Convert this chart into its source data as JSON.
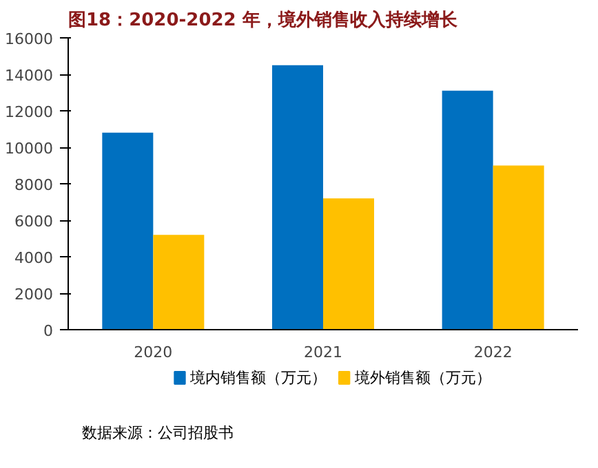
{
  "chart_data": {
    "type": "bar",
    "title": "图18：2020-2022 年，境外销售收入持续增长",
    "categories": [
      "2020",
      "2021",
      "2022"
    ],
    "series": [
      {
        "name": "境内销售额（万元）",
        "color": "#0070c0",
        "values": [
          10800,
          14500,
          13100
        ]
      },
      {
        "name": "境外销售额（万元）",
        "color": "#ffc000",
        "values": [
          5200,
          7200,
          9000
        ]
      }
    ],
    "ylim": [
      0,
      16000
    ],
    "yticks": [
      0,
      2000,
      4000,
      6000,
      8000,
      10000,
      12000,
      14000,
      16000
    ],
    "grid": false,
    "legend": "bottom",
    "annotations": [
      "数据来源：公司招股书"
    ]
  }
}
